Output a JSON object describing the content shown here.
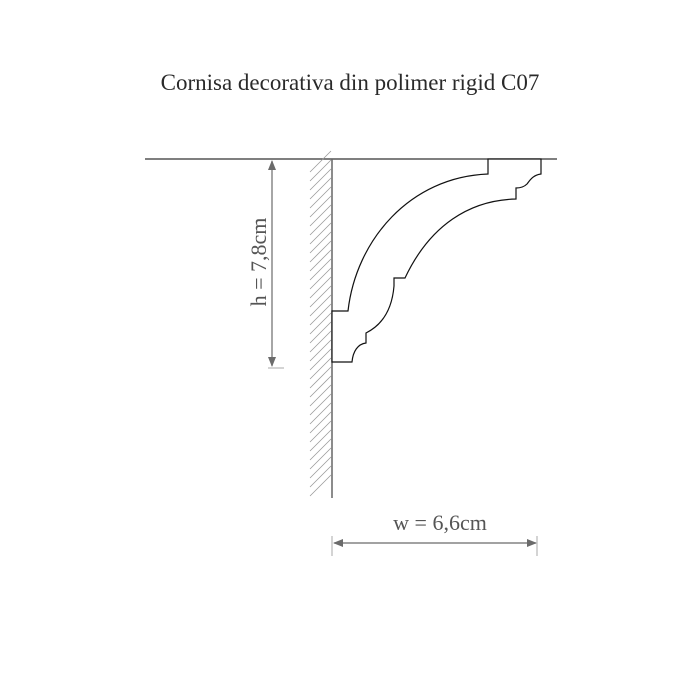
{
  "title": "Cornisa decorativa din polimer rigid C07",
  "dimensions": {
    "height_label": "h = 7,8cm",
    "width_label": "w = 6,6cm"
  },
  "colors": {
    "profile": "#111111",
    "dimension": "#6b6b6b",
    "hatch": "#9a9a9a"
  }
}
